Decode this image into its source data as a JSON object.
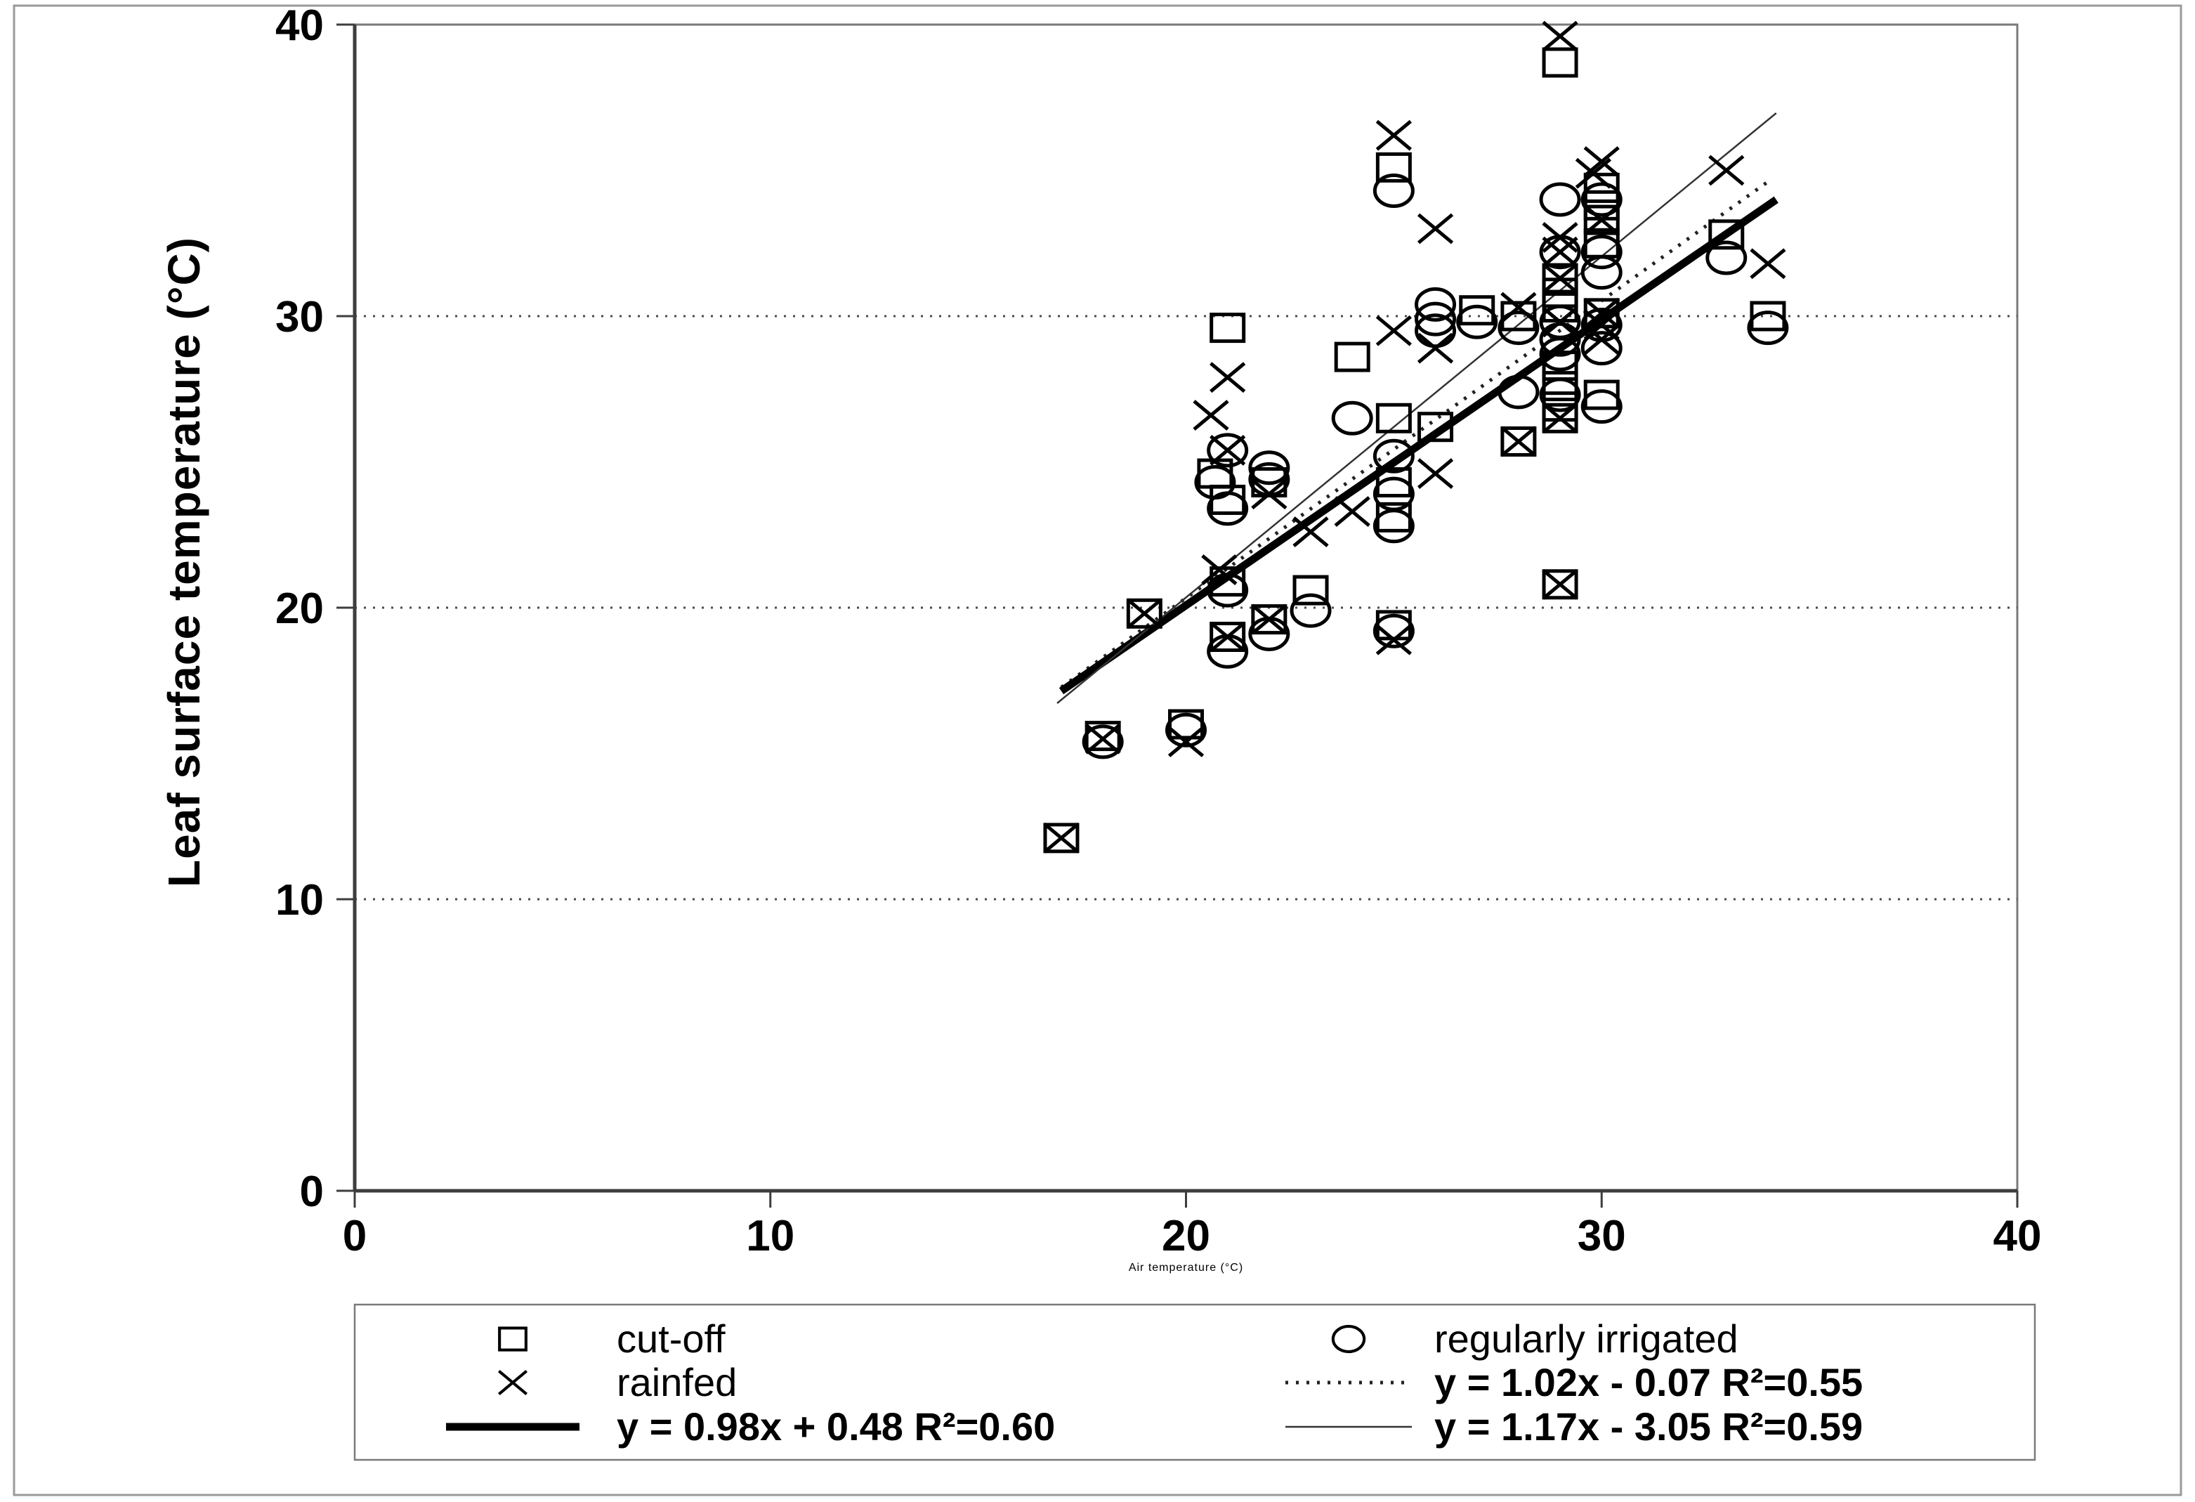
{
  "figure": {
    "background": "#ffffff",
    "outer_border_color": "#9a9a9a",
    "frame_color": "#7a7a7a",
    "axis_color": "#3d3d3d",
    "marker_color": "#000000",
    "grid_color": "#4a4a4a"
  },
  "chart_data": {
    "type": "scatter",
    "title": "",
    "xlabel": "Air temperature (°C)",
    "ylabel": "Leaf surface temperature (°C)",
    "xlim": [
      0,
      40
    ],
    "ylim": [
      0,
      40
    ],
    "xticks": [
      "0",
      "10",
      "20",
      "30",
      "40"
    ],
    "yticks": [
      "0",
      "10",
      "20",
      "30",
      "40"
    ],
    "grid_y_values": [
      10,
      20,
      30
    ],
    "grid_style": "dotted",
    "legend_position": "bottom",
    "series": [
      {
        "name": "cut-off",
        "marker": "square",
        "points": [
          [
            17,
            12.1
          ],
          [
            18,
            15.6
          ],
          [
            20,
            16.0
          ],
          [
            19,
            19.8
          ],
          [
            21,
            19.0
          ],
          [
            22,
            19.6
          ],
          [
            25,
            19.4
          ],
          [
            23,
            20.6
          ],
          [
            21,
            20.9
          ],
          [
            29,
            20.8
          ],
          [
            25,
            23.1
          ],
          [
            21,
            23.7
          ],
          [
            22,
            24.3
          ],
          [
            25,
            24.3
          ],
          [
            20.7,
            24.6
          ],
          [
            28,
            25.7
          ],
          [
            26,
            26.2
          ],
          [
            25,
            26.5
          ],
          [
            29,
            26.5
          ],
          [
            29,
            26.9
          ],
          [
            30,
            27.3
          ],
          [
            29,
            27.6
          ],
          [
            24,
            28.6
          ],
          [
            29,
            28.3
          ],
          [
            21,
            29.6
          ],
          [
            28,
            30.0
          ],
          [
            27,
            30.2
          ],
          [
            34,
            30.0
          ],
          [
            29,
            30.3
          ],
          [
            30,
            30.1
          ],
          [
            29,
            30.8
          ],
          [
            29,
            31.3
          ],
          [
            33,
            32.8
          ],
          [
            30,
            32.5
          ],
          [
            30,
            33.3
          ],
          [
            30,
            33.8
          ],
          [
            30,
            34.4
          ],
          [
            25,
            35.1
          ],
          [
            29,
            38.7
          ]
        ]
      },
      {
        "name": "regularly irrigated",
        "marker": "circle",
        "points": [
          [
            18,
            15.4
          ],
          [
            20,
            15.8
          ],
          [
            21,
            18.5
          ],
          [
            22,
            19.1
          ],
          [
            25,
            19.2
          ],
          [
            23,
            19.9
          ],
          [
            21,
            20.6
          ],
          [
            25,
            22.8
          ],
          [
            21,
            23.4
          ],
          [
            25,
            23.9
          ],
          [
            20.7,
            24.3
          ],
          [
            22,
            24.4
          ],
          [
            22,
            24.8
          ],
          [
            25,
            25.2
          ],
          [
            21,
            25.4
          ],
          [
            24,
            26.5
          ],
          [
            30,
            26.9
          ],
          [
            29,
            27.3
          ],
          [
            28,
            27.4
          ],
          [
            29,
            28.7
          ],
          [
            30,
            28.9
          ],
          [
            26,
            29.5
          ],
          [
            29,
            29.2
          ],
          [
            34,
            29.6
          ],
          [
            28,
            29.6
          ],
          [
            30,
            29.7
          ],
          [
            27,
            29.8
          ],
          [
            29,
            29.8
          ],
          [
            26,
            29.9
          ],
          [
            26,
            30.4
          ],
          [
            30,
            31.5
          ],
          [
            33,
            32.0
          ],
          [
            29,
            32.2
          ],
          [
            30,
            32.2
          ],
          [
            25,
            34.3
          ],
          [
            29,
            34.0
          ],
          [
            30,
            34.0
          ]
        ]
      },
      {
        "name": "rainfed",
        "marker": "x",
        "points": [
          [
            17,
            12.1
          ],
          [
            18,
            15.5
          ],
          [
            20,
            15.4
          ],
          [
            19,
            19.8
          ],
          [
            21,
            19.0
          ],
          [
            22,
            19.6
          ],
          [
            25,
            18.9
          ],
          [
            29,
            20.8
          ],
          [
            20.8,
            21.3
          ],
          [
            23,
            22.6
          ],
          [
            24,
            23.3
          ],
          [
            22,
            23.9
          ],
          [
            26,
            24.6
          ],
          [
            21,
            25.4
          ],
          [
            28,
            25.7
          ],
          [
            20.6,
            26.6
          ],
          [
            29,
            26.5
          ],
          [
            21,
            27.9
          ],
          [
            26,
            28.9
          ],
          [
            25,
            29.5
          ],
          [
            30,
            29.2
          ],
          [
            30,
            29.7
          ],
          [
            29,
            29.8
          ],
          [
            30,
            30.1
          ],
          [
            28,
            30.3
          ],
          [
            29,
            31.3
          ],
          [
            34,
            31.8
          ],
          [
            29,
            32.2
          ],
          [
            29,
            32.7
          ],
          [
            26,
            33.0
          ],
          [
            30,
            33.3
          ],
          [
            29.8,
            34.9
          ],
          [
            33,
            35.0
          ],
          [
            30,
            35.3
          ],
          [
            25,
            36.2
          ],
          [
            29,
            39.6
          ]
        ]
      }
    ],
    "trendlines": [
      {
        "label": "y = 1.02x - 0.07 R²=0.55",
        "slope": 1.02,
        "intercept": -0.07,
        "x_start": 17,
        "x_end": 34.0,
        "style": "dotted"
      },
      {
        "label": "y = 0.98x + 0.48 R²=0.60",
        "slope": 0.98,
        "intercept": 0.48,
        "x_start": 17,
        "x_end": 34.2,
        "style": "thick"
      },
      {
        "label": "y = 1.17x - 3.05 R²=0.59",
        "slope": 1.17,
        "intercept": -3.05,
        "x_start": 16.9,
        "x_end": 34.2,
        "style": "thin"
      }
    ],
    "legend": {
      "items": [
        {
          "row": 0,
          "col": 0,
          "type": "square",
          "label": "cut-off"
        },
        {
          "row": 0,
          "col": 1,
          "type": "circle",
          "label": "regularly irrigated"
        },
        {
          "row": 1,
          "col": 0,
          "type": "x",
          "label": "rainfed"
        },
        {
          "row": 1,
          "col": 1,
          "type": "line-dotted",
          "label": "y = 1.02x - 0.07 R²=0.55"
        },
        {
          "row": 2,
          "col": 0,
          "type": "line-thick",
          "label": "y = 0.98x + 0.48 R²=0.60"
        },
        {
          "row": 2,
          "col": 1,
          "type": "line-thin",
          "label": "y = 1.17x - 3.05 R²=0.59"
        }
      ]
    }
  }
}
